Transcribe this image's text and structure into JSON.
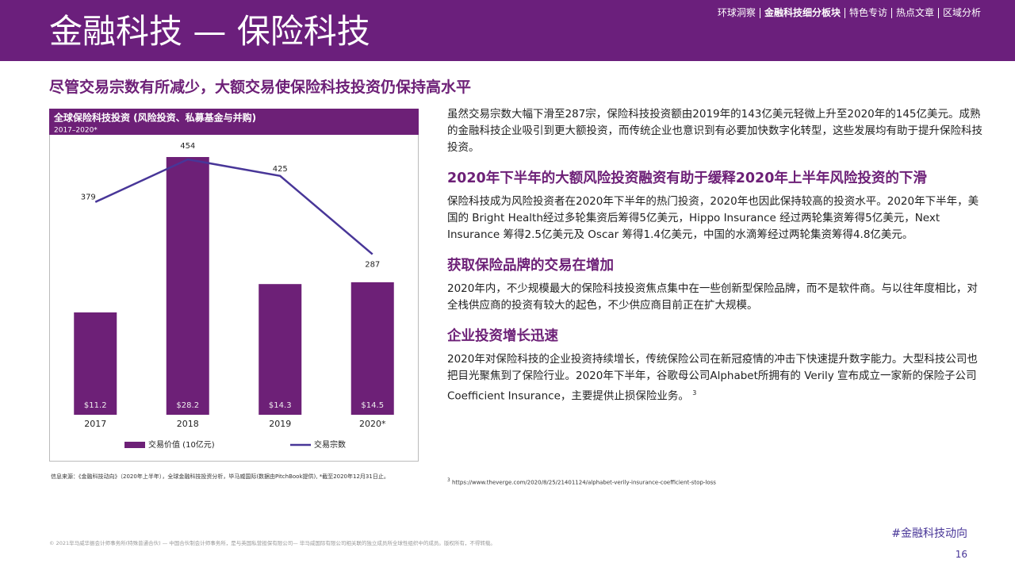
{
  "header": {
    "title": "金融科技 — 保险科技",
    "nav": [
      "环球洞察",
      "金融科技细分板块",
      "特色专访",
      "热点文章",
      "区域分析"
    ]
  },
  "headline": "尽管交易宗数有所减少，大额交易使保险科技投资仍保持高水平",
  "chart_data": {
    "type": "combo",
    "title": "全球保险科技投资 (风险投资、私募基金与并购)",
    "subtitle": "2017–2020*",
    "categories": [
      "2017",
      "2018",
      "2019",
      "2020*"
    ],
    "series": [
      {
        "name": "交易价值 (10亿元)",
        "type": "bar",
        "color": "#6d2077",
        "values": [
          11.2,
          28.2,
          14.3,
          14.5
        ],
        "value_labels": [
          "$11.2",
          "$28.2",
          "$14.3",
          "$14.5"
        ]
      },
      {
        "name": "交易宗数",
        "type": "line",
        "color": "#483698",
        "values": [
          379,
          454,
          425,
          287
        ]
      }
    ]
  },
  "source": "信息来源：《金融科技动向》（2020年上半年），全球金融科技投资分析，毕马威国际(数据由PitchBook提供), *截至2020年12月31日止。",
  "intro": "虽然交易宗数大幅下滑至287宗，保险科技投资额由2019年的143亿美元轻微上升至2020年的145亿美元。成熟的金融科技企业吸引到更大额投资，而传统企业也意识到有必要加快数字化转型，这些发展均有助于提升保险科技投资。",
  "sections": [
    {
      "heading": "2020年下半年的大额风险投资融资有助于缓释2020年上半年风险投资的下滑",
      "body": "保险科技成为风险投资者在2020年下半年的热门投资，2020年也因此保持较高的投资水平。2020年下半年，美国的 Bright Health经过多轮集资后筹得5亿美元，Hippo Insurance 经过两轮集资筹得5亿美元，Next Insurance 筹得2.5亿美元及 Oscar 筹得1.4亿美元，中国的水滴筹经过两轮集资筹得4.8亿美元。"
    },
    {
      "heading": "获取保险品牌的交易在增加",
      "body": "2020年内，不少规模最大的保险科技投资焦点集中在一些创新型保险品牌，而不是软件商。与以往年度相比，对全栈供应商的投资有较大的起色，不少供应商目前正在扩大规模。"
    },
    {
      "heading": "企业投资增长迅速",
      "body": "2020年对保险科技的企业投资持续增长，传统保险公司在新冠疫情的冲击下快速提升数字能力。大型科技公司也把目光聚焦到了保险行业。2020年下半年，谷歌母公司Alphabet所拥有的 Verily 宣布成立一家新的保险子公司 Coefficient Insurance，主要提供止损保险业务。",
      "footnote_ref": "3"
    }
  ],
  "footnote": {
    "mark": "3",
    "text": "https://www.theverge.com/2020/8/25/21401124/alphabet-verily-insurance-coefficient-stop-loss"
  },
  "footer": {
    "copyright": "© 2021毕马威华振会计师事务所(特殊普通合伙) — 中国合伙制会计师事务所，是与英国私营担保有限公司— 毕马威国际有限公司相关联的独立成员所全球性组织中的成员。版权所有，不得转载。",
    "tag": "#金融科技动向",
    "page": "16"
  }
}
